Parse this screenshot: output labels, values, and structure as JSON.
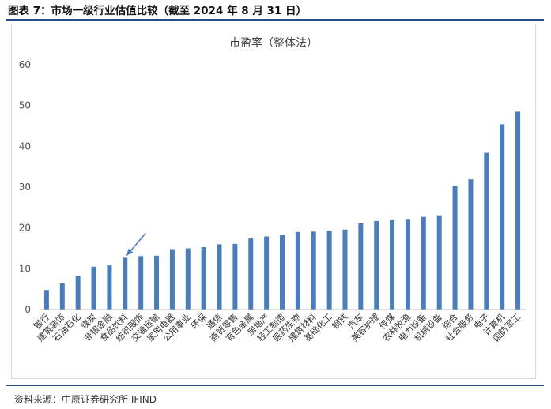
{
  "figure_title": "图表 7：市场一级行业估值比较（截至 2024 年 8 月 31 日）",
  "source": "资料来源：中原证券研究所   IFIND",
  "chart_data": {
    "type": "bar",
    "title": "市盈率（整体法）",
    "ylim": [
      0,
      60
    ],
    "yticks": [
      0,
      10,
      20,
      30,
      40,
      50,
      60
    ],
    "grid": false,
    "bar_color": "#4a7ebb",
    "annotation_color": "#4a7ebb",
    "annotated_category": "食品饮料",
    "categories": [
      "银行",
      "建筑装饰",
      "石油石化",
      "煤炭",
      "非银金融",
      "食品饮料",
      "纺织服饰",
      "交通运输",
      "家用电器",
      "公用事业",
      "环保",
      "通信",
      "商贸零售",
      "有色金属",
      "房地产",
      "轻工制造",
      "医药生物",
      "建筑材料",
      "基础化工",
      "钢铁",
      "汽车",
      "美容护理",
      "传媒",
      "农林牧渔",
      "电力设备",
      "机械设备",
      "综合",
      "社会服务",
      "电子",
      "计算机",
      "国防军工"
    ],
    "values": [
      4.8,
      6.4,
      8.3,
      10.5,
      10.8,
      12.7,
      13.1,
      13.2,
      14.8,
      15.0,
      15.3,
      16.0,
      16.1,
      17.4,
      17.9,
      18.3,
      19.0,
      19.1,
      19.3,
      19.6,
      21.1,
      21.7,
      22.0,
      22.2,
      22.7,
      23.1,
      30.3,
      31.9,
      38.4,
      45.4,
      48.5
    ]
  }
}
